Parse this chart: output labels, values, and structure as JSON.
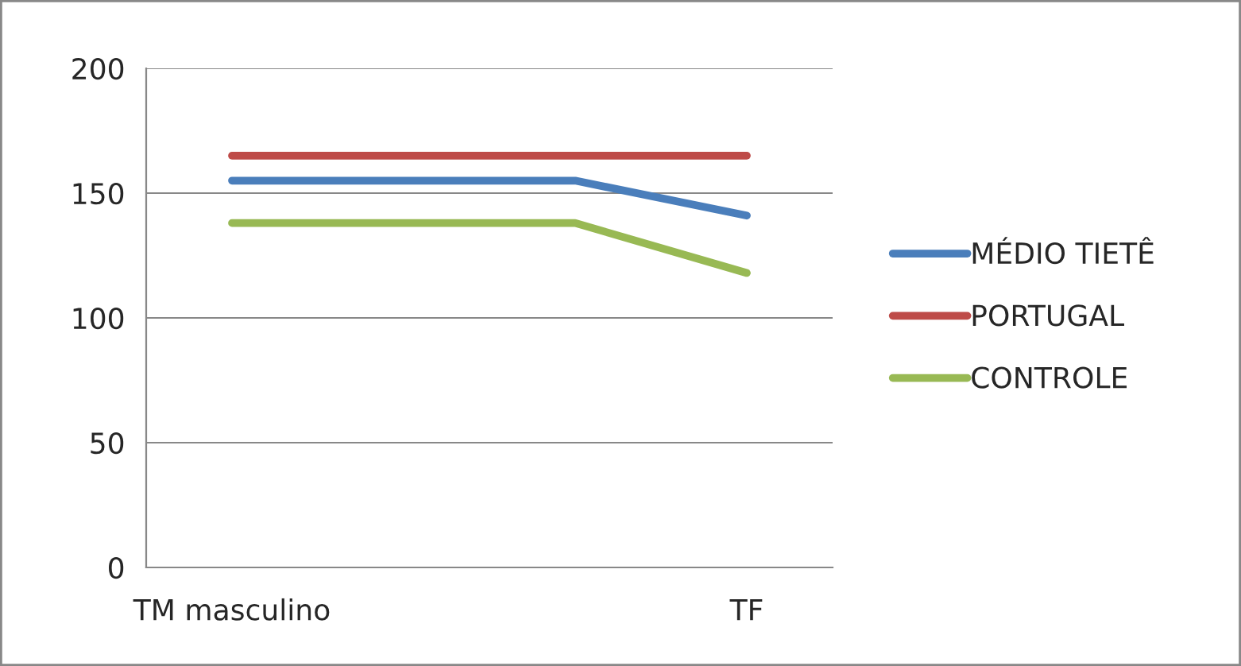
{
  "chart_data": {
    "type": "line",
    "categories": [
      "TM masculino",
      null,
      null,
      "TF"
    ],
    "series": [
      {
        "name": "MÉDIO TIETÊ",
        "color": "#4a7ebb",
        "values": [
          155,
          155,
          155,
          141
        ]
      },
      {
        "name": "PORTUGAL",
        "color": "#be4b48",
        "values": [
          165,
          165,
          165,
          165
        ]
      },
      {
        "name": "CONTROLE",
        "color": "#98b954",
        "values": [
          138,
          138,
          138,
          118
        ]
      }
    ],
    "ylim": [
      0,
      200
    ],
    "yticks": [
      0,
      50,
      100,
      150,
      200
    ],
    "grid": "y",
    "legend": "right",
    "marker": "none",
    "line_style": "solid"
  }
}
